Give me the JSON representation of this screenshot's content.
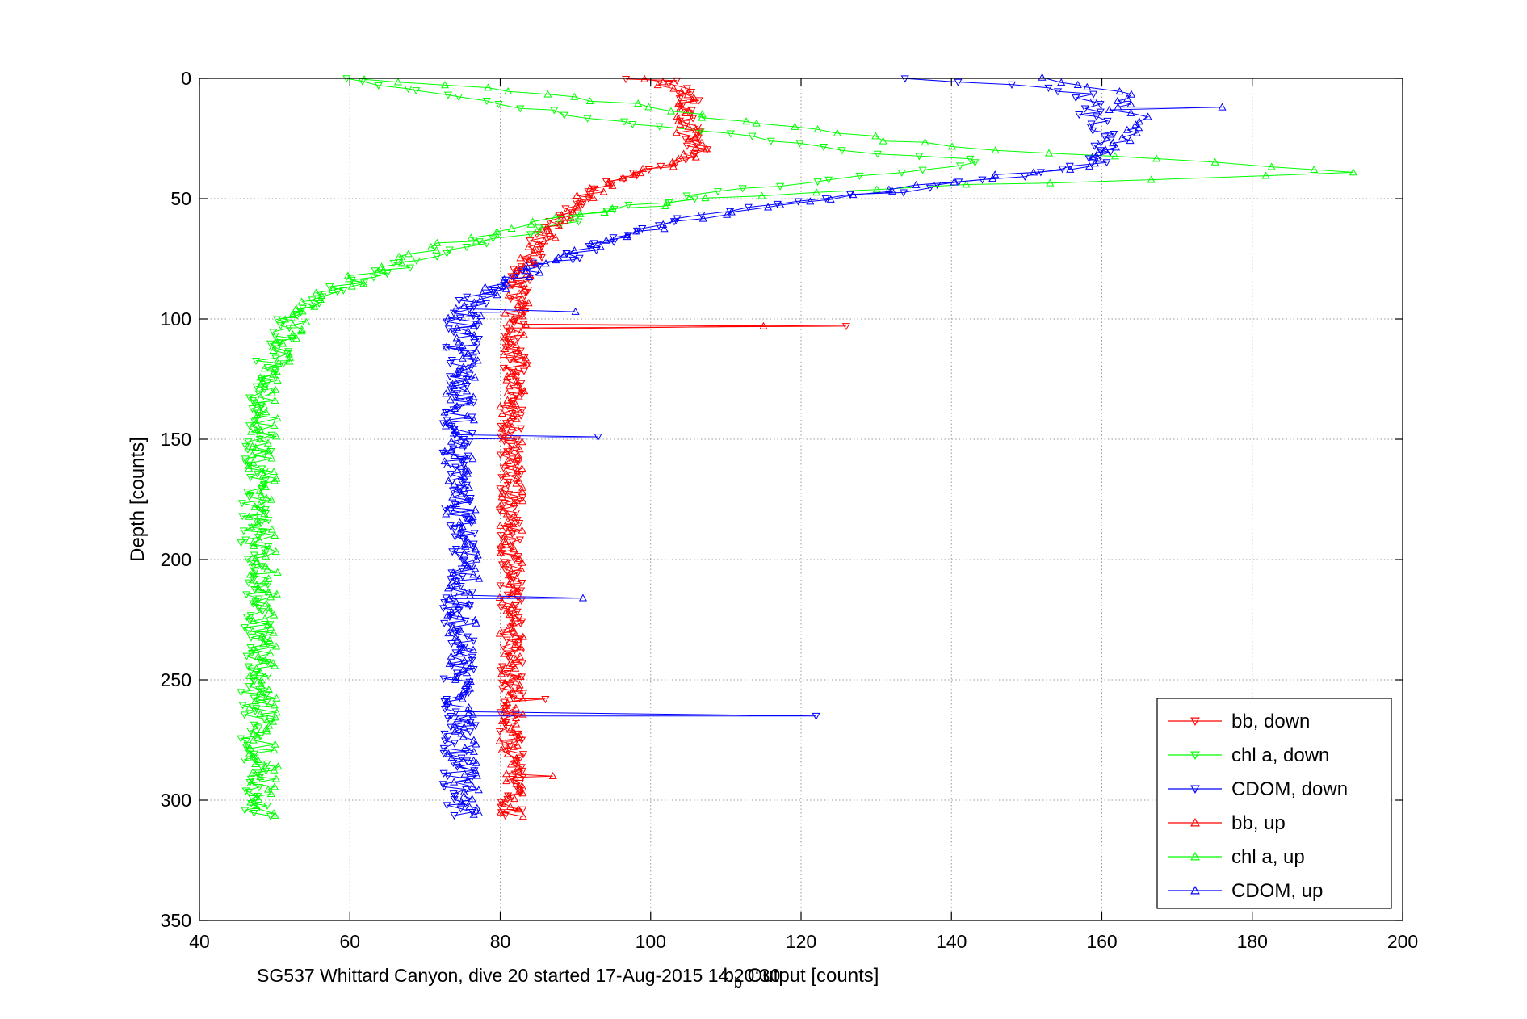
{
  "chart_data": {
    "type": "scatter",
    "title": "",
    "xlabel": {
      "main": "b",
      "sub": "b",
      "rest": " Output [counts]"
    },
    "ylabel": "Depth [counts]",
    "caption": "SG537 Whittard Canyon, dive 20 started 17-Aug-2015 14:20:30",
    "xlim": [
      40,
      200
    ],
    "ylim": [
      0,
      350
    ],
    "y_reversed": true,
    "grid": true,
    "legend_position": "bottom-right",
    "x_ticks": [
      40,
      60,
      80,
      100,
      120,
      140,
      160,
      180,
      200
    ],
    "y_ticks": [
      0,
      50,
      100,
      150,
      200,
      250,
      300,
      350
    ],
    "x_tick_labels": [
      "40",
      "60",
      "80",
      "100",
      "120",
      "140",
      "160",
      "180",
      "200"
    ],
    "y_tick_labels": [
      "0",
      "50",
      "100",
      "150",
      "200",
      "250",
      "300",
      "350"
    ],
    "marker_note": "downcast = downward triangles, upcast = upward triangles",
    "series": [
      {
        "name": "bb, down",
        "color": "#ff0000",
        "marker": "triangle-down",
        "profile": [
          [
            0,
            98
          ],
          [
            2,
            104
          ],
          [
            5,
            104
          ],
          [
            10,
            105
          ],
          [
            15,
            104
          ],
          [
            20,
            105
          ],
          [
            25,
            105
          ],
          [
            30,
            106
          ],
          [
            34,
            105
          ],
          [
            38,
            101
          ],
          [
            40,
            97
          ],
          [
            44,
            95
          ],
          [
            48,
            92
          ],
          [
            52,
            90
          ],
          [
            56,
            88
          ],
          [
            60,
            87
          ],
          [
            65,
            86
          ],
          [
            70,
            85
          ],
          [
            75,
            84
          ],
          [
            80,
            83
          ],
          [
            85,
            83
          ],
          [
            90,
            82
          ],
          [
            95,
            82
          ],
          [
            100,
            82
          ],
          [
            110,
            82
          ],
          [
            120,
            82
          ],
          [
            140,
            81.5
          ],
          [
            160,
            81.5
          ],
          [
            180,
            81.5
          ],
          [
            200,
            81.5
          ],
          [
            230,
            81.5
          ],
          [
            260,
            81.5
          ],
          [
            290,
            81.5
          ],
          [
            307,
            81.5
          ]
        ],
        "jitter": 1.6,
        "spikes": [
          [
            103,
            126
          ],
          [
            258,
            86
          ]
        ]
      },
      {
        "name": "chl a, down",
        "color": "#00ff00",
        "marker": "triangle-down",
        "profile": [
          [
            0,
            61
          ],
          [
            3,
            66
          ],
          [
            6,
            72
          ],
          [
            10,
            80
          ],
          [
            15,
            90
          ],
          [
            20,
            100
          ],
          [
            25,
            115
          ],
          [
            30,
            128
          ],
          [
            33,
            138
          ],
          [
            35,
            145
          ],
          [
            37,
            140
          ],
          [
            40,
            130
          ],
          [
            44,
            118
          ],
          [
            48,
            108
          ],
          [
            52,
            100
          ],
          [
            55,
            94
          ],
          [
            60,
            88
          ],
          [
            65,
            82
          ],
          [
            70,
            75
          ],
          [
            75,
            69
          ],
          [
            80,
            65
          ],
          [
            85,
            60
          ],
          [
            90,
            56
          ],
          [
            95,
            53
          ],
          [
            100,
            52
          ],
          [
            105,
            51
          ],
          [
            110,
            50
          ],
          [
            115,
            50
          ],
          [
            120,
            49
          ],
          [
            130,
            48.5
          ],
          [
            140,
            48
          ],
          [
            160,
            47.5
          ],
          [
            180,
            47.5
          ],
          [
            200,
            47.5
          ],
          [
            230,
            47.5
          ],
          [
            260,
            47.5
          ],
          [
            290,
            47.5
          ],
          [
            307,
            47.5
          ]
        ],
        "jitter": 2.0,
        "spikes": []
      },
      {
        "name": "CDOM, down",
        "color": "#0000ff",
        "marker": "triangle-down",
        "profile": [
          [
            0,
            135
          ],
          [
            3,
            150
          ],
          [
            6,
            157
          ],
          [
            10,
            160
          ],
          [
            15,
            159
          ],
          [
            20,
            160
          ],
          [
            25,
            160
          ],
          [
            30,
            159
          ],
          [
            33,
            160
          ],
          [
            36,
            158
          ],
          [
            40,
            150
          ],
          [
            44,
            140
          ],
          [
            48,
            130
          ],
          [
            52,
            118
          ],
          [
            56,
            108
          ],
          [
            60,
            100
          ],
          [
            65,
            96
          ],
          [
            70,
            92
          ],
          [
            75,
            88
          ],
          [
            80,
            84
          ],
          [
            85,
            80
          ],
          [
            90,
            77
          ],
          [
            95,
            76
          ],
          [
            100,
            75
          ],
          [
            110,
            75
          ],
          [
            120,
            74.5
          ],
          [
            140,
            74.5
          ],
          [
            160,
            74.5
          ],
          [
            180,
            74.5
          ],
          [
            200,
            74.5
          ],
          [
            230,
            74.5
          ],
          [
            260,
            74.5
          ],
          [
            290,
            74.5
          ],
          [
            307,
            74.5
          ]
        ],
        "jitter": 2.2,
        "spikes": [
          [
            265,
            122
          ],
          [
            149,
            93
          ]
        ]
      },
      {
        "name": "bb, up",
        "color": "#ff0000",
        "marker": "triangle-up",
        "profile": [
          [
            0,
            100
          ],
          [
            5,
            104
          ],
          [
            10,
            105
          ],
          [
            15,
            104
          ],
          [
            20,
            105
          ],
          [
            25,
            105
          ],
          [
            30,
            106
          ],
          [
            34,
            104
          ],
          [
            38,
            100
          ],
          [
            42,
            96
          ],
          [
            46,
            93
          ],
          [
            50,
            91
          ],
          [
            55,
            89
          ],
          [
            60,
            87
          ],
          [
            65,
            86
          ],
          [
            70,
            85
          ],
          [
            80,
            83
          ],
          [
            90,
            82.5
          ],
          [
            100,
            82
          ],
          [
            120,
            82
          ],
          [
            140,
            81.5
          ],
          [
            160,
            81.5
          ],
          [
            200,
            81.5
          ],
          [
            250,
            81.5
          ],
          [
            300,
            81.5
          ],
          [
            307,
            81.5
          ]
        ],
        "jitter": 1.6,
        "spikes": [
          [
            290,
            87
          ],
          [
            103,
            115
          ]
        ]
      },
      {
        "name": "chl a, up",
        "color": "#00ff00",
        "marker": "triangle-up",
        "profile": [
          [
            0,
            63
          ],
          [
            4,
            78
          ],
          [
            8,
            90
          ],
          [
            12,
            100
          ],
          [
            16,
            108
          ],
          [
            20,
            118
          ],
          [
            25,
            130
          ],
          [
            30,
            148
          ],
          [
            34,
            168
          ],
          [
            37,
            185
          ],
          [
            39,
            195
          ],
          [
            42,
            165
          ],
          [
            46,
            130
          ],
          [
            50,
            108
          ],
          [
            54,
            96
          ],
          [
            58,
            88
          ],
          [
            62,
            82
          ],
          [
            66,
            77
          ],
          [
            70,
            72
          ],
          [
            75,
            67
          ],
          [
            80,
            63
          ],
          [
            85,
            60
          ],
          [
            90,
            56
          ],
          [
            95,
            54
          ],
          [
            100,
            53
          ],
          [
            110,
            52
          ],
          [
            120,
            50
          ],
          [
            140,
            49
          ],
          [
            160,
            48.5
          ],
          [
            200,
            48.5
          ],
          [
            250,
            48.5
          ],
          [
            300,
            48.5
          ],
          [
            307,
            48.5
          ]
        ],
        "jitter": 2.0,
        "spikes": []
      },
      {
        "name": "CDOM, up",
        "color": "#0000ff",
        "marker": "triangle-up",
        "profile": [
          [
            0,
            150
          ],
          [
            4,
            160
          ],
          [
            8,
            163
          ],
          [
            12,
            162
          ],
          [
            16,
            164
          ],
          [
            20,
            163
          ],
          [
            25,
            164
          ],
          [
            30,
            162
          ],
          [
            34,
            160
          ],
          [
            38,
            155
          ],
          [
            42,
            143
          ],
          [
            46,
            133
          ],
          [
            50,
            125
          ],
          [
            54,
            115
          ],
          [
            58,
            106
          ],
          [
            62,
            100
          ],
          [
            66,
            96
          ],
          [
            70,
            92
          ],
          [
            75,
            88
          ],
          [
            80,
            84
          ],
          [
            85,
            81
          ],
          [
            90,
            78
          ],
          [
            95,
            76
          ],
          [
            100,
            75
          ],
          [
            120,
            75
          ],
          [
            140,
            74.5
          ],
          [
            160,
            74.5
          ],
          [
            200,
            75
          ],
          [
            250,
            75
          ],
          [
            300,
            75
          ],
          [
            307,
            75
          ]
        ],
        "jitter": 2.2,
        "spikes": [
          [
            12,
            176
          ],
          [
            216,
            91
          ],
          [
            97,
            90
          ]
        ]
      }
    ]
  }
}
